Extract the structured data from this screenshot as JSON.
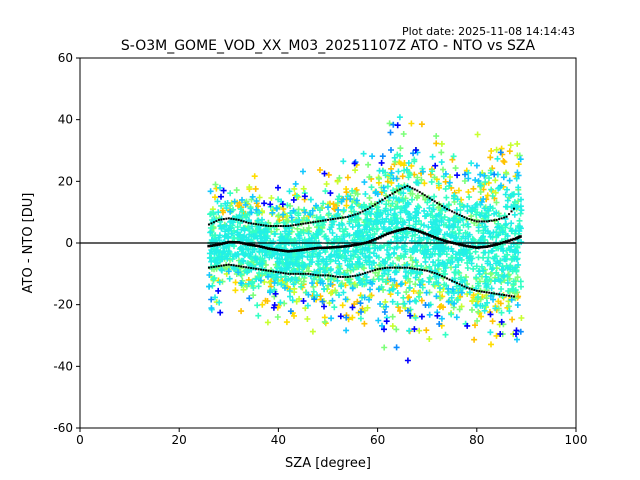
{
  "plot_date": "Plot date: 2025-11-08 14:14:43",
  "chart_data": {
    "type": "scatter",
    "title": "S-O3M_GOME_VOD_XX_M03_20251107Z ATO - NTO vs SZA",
    "xlabel": "SZA [degree]",
    "ylabel": "ATO - NTO [DU]",
    "xlim": [
      0,
      100
    ],
    "ylim": [
      -60,
      60
    ],
    "xticks": [
      0,
      20,
      40,
      60,
      80,
      100
    ],
    "yticks": [
      -60,
      -40,
      -20,
      0,
      20,
      40,
      60
    ],
    "grid": false,
    "zero_line": 0,
    "scatter_colors": [
      "#ffdd00",
      "#ffc200",
      "#c8ff30",
      "#7dff7a",
      "#34ffc4",
      "#22f0e6",
      "#14c8ff",
      "#0a8cff",
      "#0000ff"
    ],
    "series": [
      {
        "kind": "mean",
        "x": [
          26,
          28,
          30,
          32,
          34,
          36,
          38,
          40,
          42,
          44,
          46,
          48,
          50,
          52,
          54,
          56,
          58,
          60,
          62,
          64,
          66,
          68,
          70,
          72,
          74,
          76,
          78,
          80,
          82,
          84,
          86,
          88,
          89
        ],
        "values": [
          -1,
          -0.5,
          0.3,
          0.2,
          -0.5,
          -1,
          -1.8,
          -2.3,
          -2.7,
          -2.4,
          -2,
          -1.6,
          -1.5,
          -1.3,
          -1,
          -0.5,
          0.2,
          1.5,
          3,
          4,
          4.8,
          4,
          2.8,
          1.5,
          0.5,
          -0.3,
          -1,
          -1.5,
          -1.2,
          -0.5,
          0.5,
          1.5,
          2.3
        ]
      },
      {
        "kind": "mean+std",
        "x": [
          26,
          28,
          30,
          32,
          34,
          36,
          38,
          40,
          42,
          44,
          46,
          48,
          50,
          52,
          54,
          56,
          58,
          60,
          62,
          64,
          66,
          68,
          70,
          72,
          74,
          76,
          78,
          80,
          82,
          84,
          86,
          88
        ],
        "values": [
          6,
          7.5,
          8,
          7.5,
          6.5,
          6,
          5.5,
          5.5,
          5.5,
          6,
          6.5,
          7,
          7.5,
          8,
          8.5,
          9.5,
          11,
          13,
          15,
          17,
          18.5,
          17,
          15,
          13,
          11,
          9.5,
          8,
          7,
          7,
          7.5,
          8.5,
          12
        ]
      },
      {
        "kind": "mean-std",
        "x": [
          26,
          28,
          30,
          32,
          34,
          36,
          38,
          40,
          42,
          44,
          46,
          48,
          50,
          52,
          54,
          56,
          58,
          60,
          62,
          64,
          66,
          68,
          70,
          72,
          74,
          76,
          78,
          80,
          82,
          84,
          86,
          88
        ],
        "values": [
          -8,
          -7.5,
          -7,
          -7.5,
          -8,
          -8.5,
          -9,
          -9.5,
          -10,
          -10,
          -10,
          -10.5,
          -10.5,
          -11,
          -11,
          -10.5,
          -9.5,
          -8.5,
          -8,
          -8,
          -8,
          -8.5,
          -9,
          -10,
          -11.5,
          -13,
          -14.5,
          -15.5,
          -16,
          -16.5,
          -17,
          -17.5
        ]
      }
    ]
  }
}
